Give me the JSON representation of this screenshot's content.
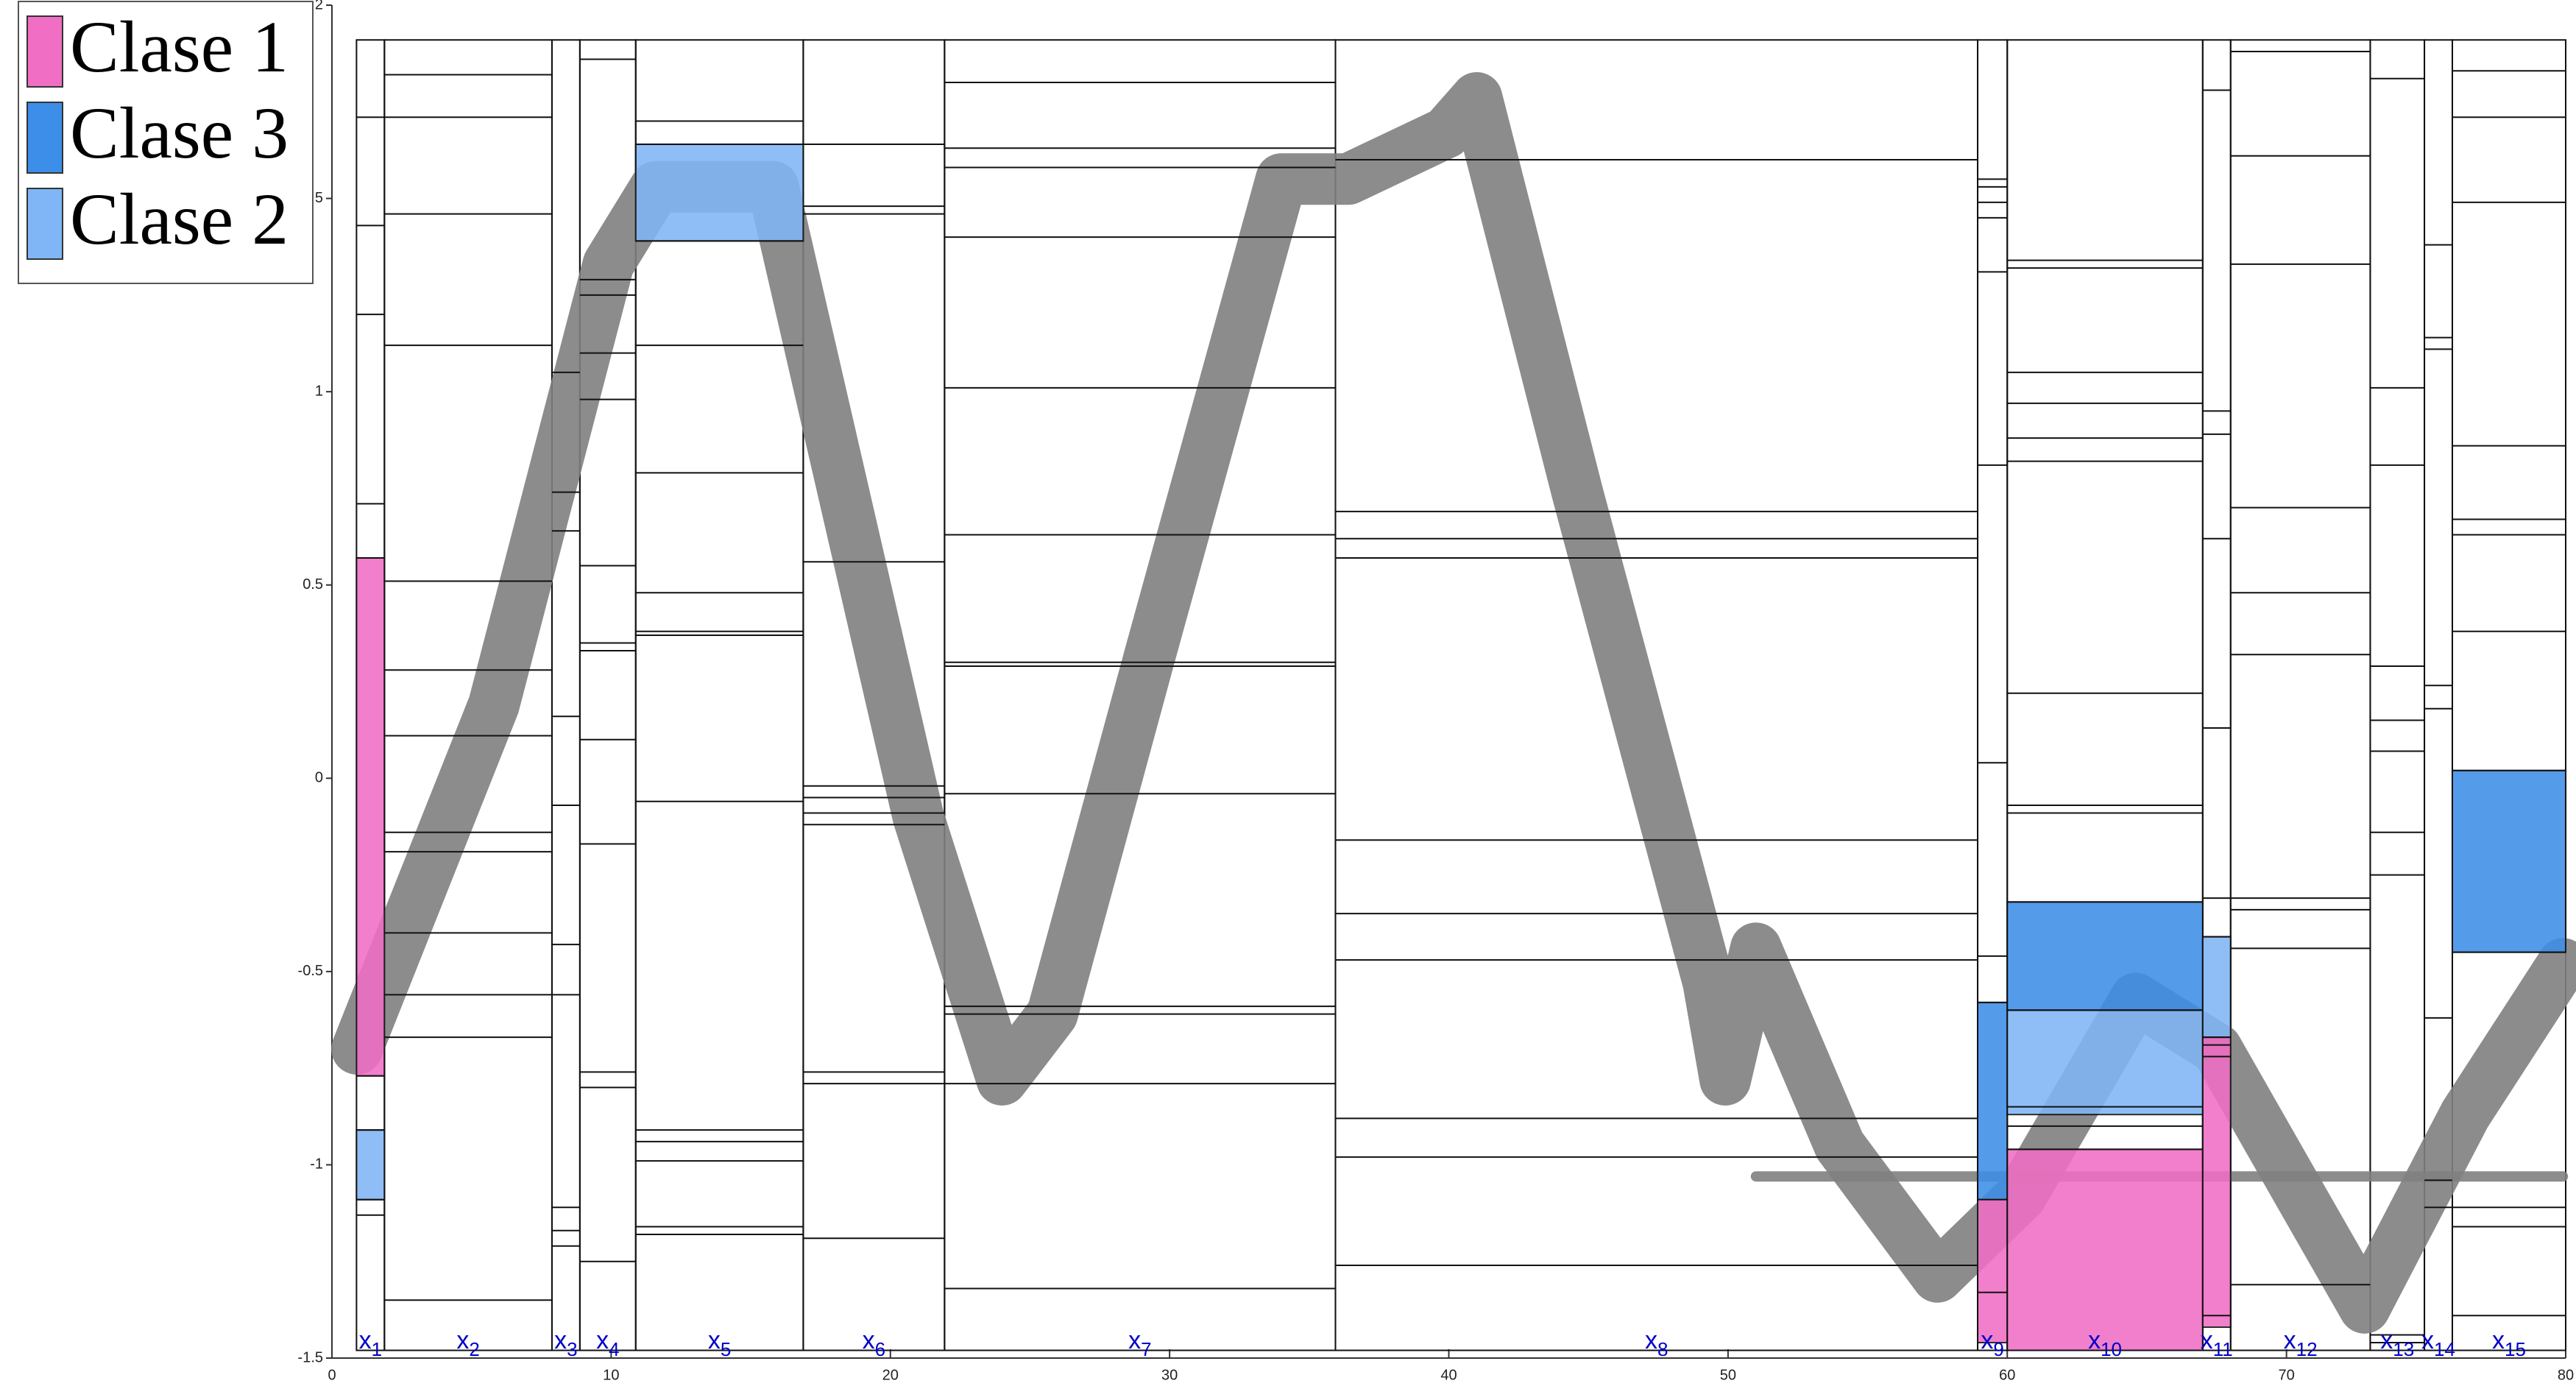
{
  "chart_data": {
    "type": "line",
    "xlim": [
      0,
      80
    ],
    "xticks": [
      0,
      10,
      20,
      30,
      40,
      50,
      60,
      70,
      80
    ],
    "ylim": [
      -1.5,
      2
    ],
    "yticks": [
      -1.5,
      -1,
      -0.5,
      0,
      0.5,
      1,
      1.5,
      2
    ],
    "x": [
      0.9,
      5.8,
      9.9,
      11.6,
      15.8,
      21,
      24,
      25.8,
      29.3,
      34,
      36.4,
      39.9,
      41,
      44.6,
      49.3,
      49.9,
      51,
      54,
      57.5,
      60.5,
      64.6,
      67.5,
      70.5,
      72.8,
      76.4,
      79.9
    ],
    "series": [
      {
        "color": "#808080",
        "values": [
          -0.7,
          0.19,
          1.33,
          1.53,
          1.53,
          -0.1,
          -0.78,
          -0.61,
          0.32,
          1.55,
          1.55,
          1.67,
          1.76,
          0.74,
          -0.53,
          -0.78,
          -0.44,
          -0.95,
          -1.29,
          -1.08,
          -0.57,
          -0.7,
          -1.08,
          -1.37,
          -0.87,
          -0.48
        ]
      },
      {
        "color": "#808080",
        "values": [
          null,
          null,
          null,
          null,
          null,
          null,
          null,
          null,
          null,
          null,
          null,
          null,
          null,
          null,
          null,
          null,
          -1.03,
          -1.03,
          -1.03,
          -1.03,
          -1.03,
          -1.03,
          -1.03,
          -1.03,
          -1.03,
          -1.03
        ]
      }
    ],
    "classes": [
      {
        "name": "Clase 1",
        "color": "#f06ec4"
      },
      {
        "name": "Clase 3",
        "color": "#3d8ee8"
      },
      {
        "name": "Clase 2",
        "color": "#80b6f6"
      }
    ],
    "box_ylim": [
      -1.48,
      1.91
    ],
    "regions": [
      {
        "label": "x",
        "sub": "1",
        "xlim": [
          0.88,
          1.88
        ],
        "splits": [
          1.71,
          1.43,
          1.2,
          0.71,
          0.57,
          -0.77,
          -0.91,
          -1.09,
          -1.13
        ],
        "blocks": [
          {
            "class": 0,
            "range": [
              -0.77,
              0.57
            ]
          },
          {
            "class": 2,
            "range": [
              -1.09,
              -0.91
            ]
          }
        ]
      },
      {
        "label": "x",
        "sub": "2",
        "xlim": [
          1.88,
          7.88
        ],
        "splits": [
          1.82,
          1.71,
          1.46,
          1.12,
          0.51,
          0.28,
          0.11,
          -0.14,
          -0.19,
          -0.4,
          -0.56,
          -0.67,
          -1.35
        ],
        "blocks": []
      },
      {
        "label": "x",
        "sub": "3",
        "xlim": [
          7.88,
          8.88
        ],
        "splits": [
          1.05,
          0.74,
          0.64,
          0.16,
          -0.07,
          -0.43,
          -0.56,
          -1.11,
          -1.17,
          -1.21
        ],
        "blocks": []
      },
      {
        "label": "x",
        "sub": "4",
        "xlim": [
          8.88,
          10.88
        ],
        "splits": [
          1.86,
          1.29,
          1.25,
          1.1,
          0.98,
          0.55,
          0.35,
          0.33,
          0.1,
          -0.17,
          -0.76,
          -0.8,
          -1.25
        ],
        "blocks": []
      },
      {
        "label": "x",
        "sub": "5",
        "xlim": [
          10.88,
          16.88
        ],
        "splits": [
          1.7,
          1.64,
          1.39,
          1.12,
          0.79,
          0.48,
          0.38,
          0.37,
          -0.06,
          -0.91,
          -0.94,
          -0.99,
          -1.16,
          -1.18
        ],
        "blocks": [
          {
            "class": 2,
            "range": [
              1.39,
              1.64
            ]
          }
        ]
      },
      {
        "label": "x",
        "sub": "6",
        "xlim": [
          16.88,
          21.94
        ],
        "splits": [
          1.64,
          1.48,
          1.46,
          0.56,
          -0.02,
          -0.05,
          -0.09,
          -0.12,
          -0.76,
          -0.79,
          -1.19
        ],
        "blocks": []
      },
      {
        "label": "x",
        "sub": "7",
        "xlim": [
          21.94,
          35.94
        ],
        "splits": [
          1.8,
          1.63,
          1.58,
          1.4,
          1.01,
          0.63,
          0.3,
          0.29,
          -0.04,
          -0.59,
          -0.61,
          -0.79,
          -1.32
        ],
        "blocks": []
      },
      {
        "label": "x",
        "sub": "8",
        "xlim": [
          35.94,
          58.94
        ],
        "splits": [
          1.6,
          0.69,
          0.62,
          0.57,
          -0.16,
          -0.35,
          -0.47,
          -0.88,
          -0.98,
          -1.26
        ],
        "blocks": []
      },
      {
        "label": "x",
        "sub": "9",
        "xlim": [
          58.94,
          60
        ],
        "splits": [
          1.55,
          1.53,
          1.49,
          1.45,
          1.31,
          0.81,
          0.04,
          -0.46,
          -0.58,
          -1.33
        ],
        "blocks": [
          {
            "class": 1,
            "range": [
              -1.09,
              -0.58
            ]
          },
          {
            "class": 0,
            "range": [
              -1.46,
              -1.09
            ]
          }
        ]
      },
      {
        "label": "x",
        "sub": "10",
        "xlim": [
          60,
          67
        ],
        "splits": [
          1.34,
          1.32,
          1.05,
          0.97,
          0.88,
          0.82,
          0.22,
          -0.07,
          -0.09,
          -0.32,
          -0.6,
          -0.85,
          -0.9,
          -0.96
        ],
        "blocks": [
          {
            "class": 1,
            "range": [
              -0.6,
              -0.32
            ]
          },
          {
            "class": 2,
            "range": [
              -0.87,
              -0.6
            ]
          },
          {
            "class": 0,
            "range": [
              -1.48,
              -0.96
            ]
          }
        ]
      },
      {
        "label": "x",
        "sub": "11",
        "xlim": [
          67,
          68
        ],
        "splits": [
          1.78,
          0.95,
          0.89,
          0.62,
          0.13,
          -0.31,
          -0.41,
          -0.67,
          -0.69,
          -0.72,
          -1.39
        ],
        "blocks": [
          {
            "class": 2,
            "range": [
              -0.67,
              -0.41
            ]
          },
          {
            "class": 0,
            "range": [
              -1.42,
              -0.67
            ]
          }
        ]
      },
      {
        "label": "x",
        "sub": "12",
        "xlim": [
          68,
          73
        ],
        "splits": [
          1.88,
          1.61,
          1.33,
          0.7,
          0.48,
          0.32,
          -0.31,
          -0.34,
          -0.44,
          -1.31
        ],
        "blocks": []
      },
      {
        "label": "x",
        "sub": "13",
        "xlim": [
          73,
          74.94
        ],
        "splits": [
          1.81,
          1.01,
          0.81,
          0.29,
          0.15,
          0.07,
          -0.14,
          -0.25,
          -1.44,
          -1.46
        ],
        "blocks": []
      },
      {
        "label": "x",
        "sub": "14",
        "xlim": [
          74.94,
          75.94
        ],
        "splits": [
          1.38,
          1.14,
          1.11,
          0.24,
          0.18,
          -0.62,
          -1.04,
          -1.11
        ],
        "blocks": []
      },
      {
        "label": "x",
        "sub": "15",
        "xlim": [
          75.94,
          80
        ],
        "splits": [
          1.83,
          1.71,
          1.49,
          0.86,
          0.67,
          0.63,
          0.38,
          0.02,
          -0.45,
          -1.11,
          -1.16,
          -1.39
        ],
        "blocks": [
          {
            "class": 1,
            "range": [
              -0.45,
              0.02
            ]
          }
        ]
      }
    ]
  }
}
